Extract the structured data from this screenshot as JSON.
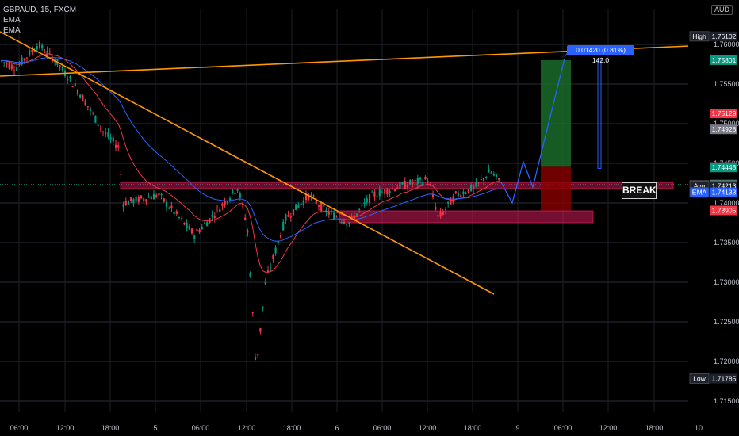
{
  "header": {
    "symbol_line": "GBPAUD, 15, FXCM",
    "indicators": [
      "EMA",
      "EMA"
    ],
    "currency": "AUD"
  },
  "annotations": {
    "break_label": "BREAK",
    "measure_label": "0.01420 (0.81%) 142.0"
  },
  "colors": {
    "background": "#000000",
    "up": "#089981",
    "down": "#f23645",
    "trendline": "#ff9800",
    "ema_fast": "#f23645",
    "ema_slow": "#2962ff",
    "zone": "#e91e63",
    "profit": "#1b5e20",
    "loss": "#8b0000",
    "projection": "#2962ff"
  },
  "price_axis": {
    "ticks": [
      "1.76000",
      "1.75500",
      "1.75000",
      "1.74500",
      "1.74000",
      "1.73500",
      "1.73000",
      "1.72500",
      "1.72000",
      "1.71500"
    ],
    "tags": [
      {
        "name": "High",
        "value": "1.76102",
        "color": "#1e222d"
      },
      {
        "name": "",
        "value": "1.75801",
        "color": "#089981"
      },
      {
        "name": "",
        "value": "1.75129",
        "color": "#f23645"
      },
      {
        "name": "",
        "value": "1.74928",
        "color": "#787b86"
      },
      {
        "name": "",
        "value": "1.74456",
        "color": "#434651"
      },
      {
        "name": "",
        "value": "1.74448",
        "color": "#089981"
      },
      {
        "name": "",
        "value": "1.74233",
        "color": "#089981"
      },
      {
        "name": "EMA",
        "value": "1.74223",
        "color": "#f23645"
      },
      {
        "name": "Avg",
        "value": "1.74213",
        "color": "#1e222d"
      },
      {
        "name": "EMA",
        "value": "1.74133",
        "color": "#2962ff"
      },
      {
        "name": "",
        "value": "1.73905",
        "color": "#f23645"
      },
      {
        "name": "Low",
        "value": "1.71785",
        "color": "#1e222d"
      }
    ]
  },
  "time_axis": {
    "labels": [
      "06:00",
      "12:00",
      "18:00",
      "5",
      "06:00",
      "12:00",
      "18:00",
      "6",
      "06:00",
      "12:00",
      "18:00",
      "9",
      "06:00",
      "12:00",
      "18:00",
      "10"
    ]
  },
  "chart_data": {
    "type": "candlestick",
    "symbol": "GBPAUD",
    "timeframe": "15",
    "ylim": [
      1.7135,
      1.7645
    ],
    "high": 1.76102,
    "low": 1.71785,
    "last": 1.74233,
    "ema_fast": 1.74223,
    "ema_slow": 1.74133,
    "avg": 1.74213,
    "resistance_zone": [
      1.7418,
      1.7426
    ],
    "support_zone": [
      1.7375,
      1.739
    ],
    "position": {
      "entry": 1.74456,
      "target": 1.75801,
      "stop": 1.73905
    },
    "measure": "0.01420 (0.81%) 142.0"
  }
}
